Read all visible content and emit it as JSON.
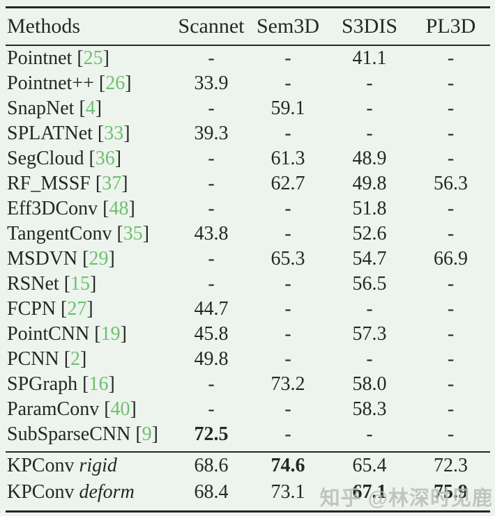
{
  "page": {
    "background": "#edf4ee",
    "text_color": "#232823",
    "rule_color": "#262626",
    "citation_color": "#6ec06e"
  },
  "table": {
    "columns": [
      "Methods",
      "Scannet",
      "Sem3D",
      "S3DIS",
      "PL3D"
    ],
    "rows": [
      {
        "method": "Pointnet",
        "cite": "25",
        "values": [
          "-",
          "-",
          "41.1",
          "-"
        ],
        "bold": []
      },
      {
        "method": "Pointnet++",
        "cite": "26",
        "values": [
          "33.9",
          "-",
          "-",
          "-"
        ],
        "bold": []
      },
      {
        "method": "SnapNet",
        "cite": "4",
        "values": [
          "-",
          "59.1",
          "-",
          "-"
        ],
        "bold": []
      },
      {
        "method": "SPLATNet",
        "cite": "33",
        "values": [
          "39.3",
          "-",
          "-",
          "-"
        ],
        "bold": []
      },
      {
        "method": "SegCloud",
        "cite": "36",
        "values": [
          "-",
          "61.3",
          "48.9",
          "-"
        ],
        "bold": []
      },
      {
        "method": "RF_MSSF",
        "cite": "37",
        "values": [
          "-",
          "62.7",
          "49.8",
          "56.3"
        ],
        "bold": []
      },
      {
        "method": "Eff3DConv",
        "cite": "48",
        "values": [
          "-",
          "-",
          "51.8",
          "-"
        ],
        "bold": []
      },
      {
        "method": "TangentConv",
        "cite": "35",
        "values": [
          "43.8",
          "-",
          "52.6",
          "-"
        ],
        "bold": []
      },
      {
        "method": "MSDVN",
        "cite": "29",
        "values": [
          "-",
          "65.3",
          "54.7",
          "66.9"
        ],
        "bold": []
      },
      {
        "method": "RSNet",
        "cite": "15",
        "values": [
          "-",
          "-",
          "56.5",
          "-"
        ],
        "bold": []
      },
      {
        "method": "FCPN",
        "cite": "27",
        "values": [
          "44.7",
          "-",
          "-",
          "-"
        ],
        "bold": []
      },
      {
        "method": "PointCNN",
        "cite": "19",
        "values": [
          "45.8",
          "-",
          "57.3",
          "-"
        ],
        "bold": []
      },
      {
        "method": "PCNN",
        "cite": "2",
        "values": [
          "49.8",
          "-",
          "-",
          "-"
        ],
        "bold": []
      },
      {
        "method": "SPGraph",
        "cite": "16",
        "values": [
          "-",
          "73.2",
          "58.0",
          "-"
        ],
        "bold": []
      },
      {
        "method": "ParamConv",
        "cite": "40",
        "values": [
          "-",
          "-",
          "58.3",
          "-"
        ],
        "bold": []
      },
      {
        "method": "SubSparseCNN",
        "cite": "9",
        "values": [
          "72.5",
          "-",
          "-",
          "-"
        ],
        "bold": [
          0
        ]
      }
    ],
    "kpconv_rows": [
      {
        "method": "KPConv",
        "variant": "rigid",
        "values": [
          "68.6",
          "74.6",
          "65.4",
          "72.3"
        ],
        "bold": [
          1
        ]
      },
      {
        "method": "KPConv",
        "variant": "deform",
        "values": [
          "68.4",
          "73.1",
          "67.1",
          "75.9"
        ],
        "bold": [
          2,
          3
        ]
      }
    ]
  },
  "watermark": {
    "text": "知乎 @林深时见鹿",
    "color": "#b5bab5"
  }
}
